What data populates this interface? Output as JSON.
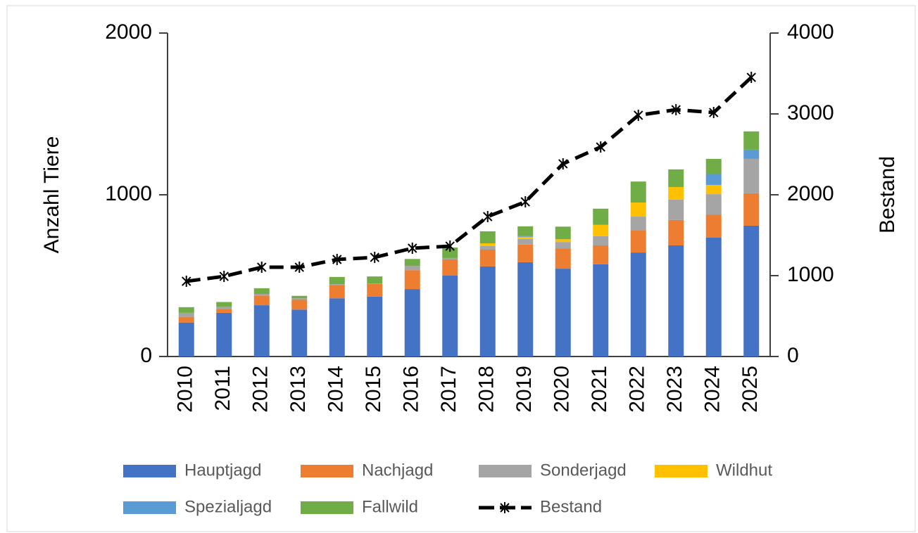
{
  "chart_data": {
    "type": "bar",
    "stacked": true,
    "y_label": "Anzahl Tiere",
    "y2_label": "Bestand",
    "categories": [
      "2010",
      "2011",
      "2012",
      "2013",
      "2014",
      "2015",
      "2016",
      "2017",
      "2018",
      "2019",
      "2020",
      "2021",
      "2022",
      "2023",
      "2024",
      "2025"
    ],
    "series": [
      {
        "name": "Hauptjagd",
        "color": "#4472c4",
        "values": [
          210,
          270,
          317,
          290,
          360,
          370,
          417,
          500,
          557,
          583,
          543,
          570,
          643,
          687,
          735,
          809
        ]
      },
      {
        "name": "Nachjagd",
        "color": "#ed7d31",
        "values": [
          35,
          25,
          60,
          60,
          83,
          78,
          117,
          100,
          104,
          109,
          126,
          117,
          139,
          157,
          143,
          200
        ]
      },
      {
        "name": "Sonderjagd",
        "color": "#a5a5a5",
        "values": [
          25,
          12,
          10,
          10,
          4,
          4,
          26,
          9,
          22,
          35,
          39,
          57,
          83,
          126,
          126,
          213
        ]
      },
      {
        "name": "Wildhut",
        "color": "#ffc000",
        "values": [
          0,
          0,
          0,
          0,
          0,
          0,
          0,
          0,
          17,
          13,
          17,
          70,
          87,
          78,
          57,
          0
        ]
      },
      {
        "name": "Spezialjagd",
        "color": "#5b9bd5",
        "values": [
          0,
          0,
          0,
          0,
          0,
          0,
          0,
          0,
          0,
          4,
          0,
          0,
          0,
          0,
          65,
          57
        ]
      },
      {
        "name": "Fallwild",
        "color": "#70ad47",
        "values": [
          35,
          30,
          35,
          15,
          45,
          43,
          43,
          65,
          74,
          61,
          78,
          100,
          130,
          109,
          96,
          113
        ]
      },
      {
        "name": "Bestand",
        "color": "#000000",
        "axis": "y2",
        "kind": "line",
        "values": [
          930,
          991,
          1104,
          1104,
          1200,
          1226,
          1339,
          1365,
          1730,
          1913,
          2383,
          2591,
          2983,
          3052,
          3017,
          3452
        ]
      }
    ],
    "ylim": [
      0,
      2000
    ],
    "yticks": [
      0,
      1000,
      2000
    ],
    "y2lim": [
      0,
      4000
    ],
    "y2ticks": [
      0,
      1000,
      2000,
      3000,
      4000
    ],
    "legend": "bottom",
    "grid": false
  }
}
